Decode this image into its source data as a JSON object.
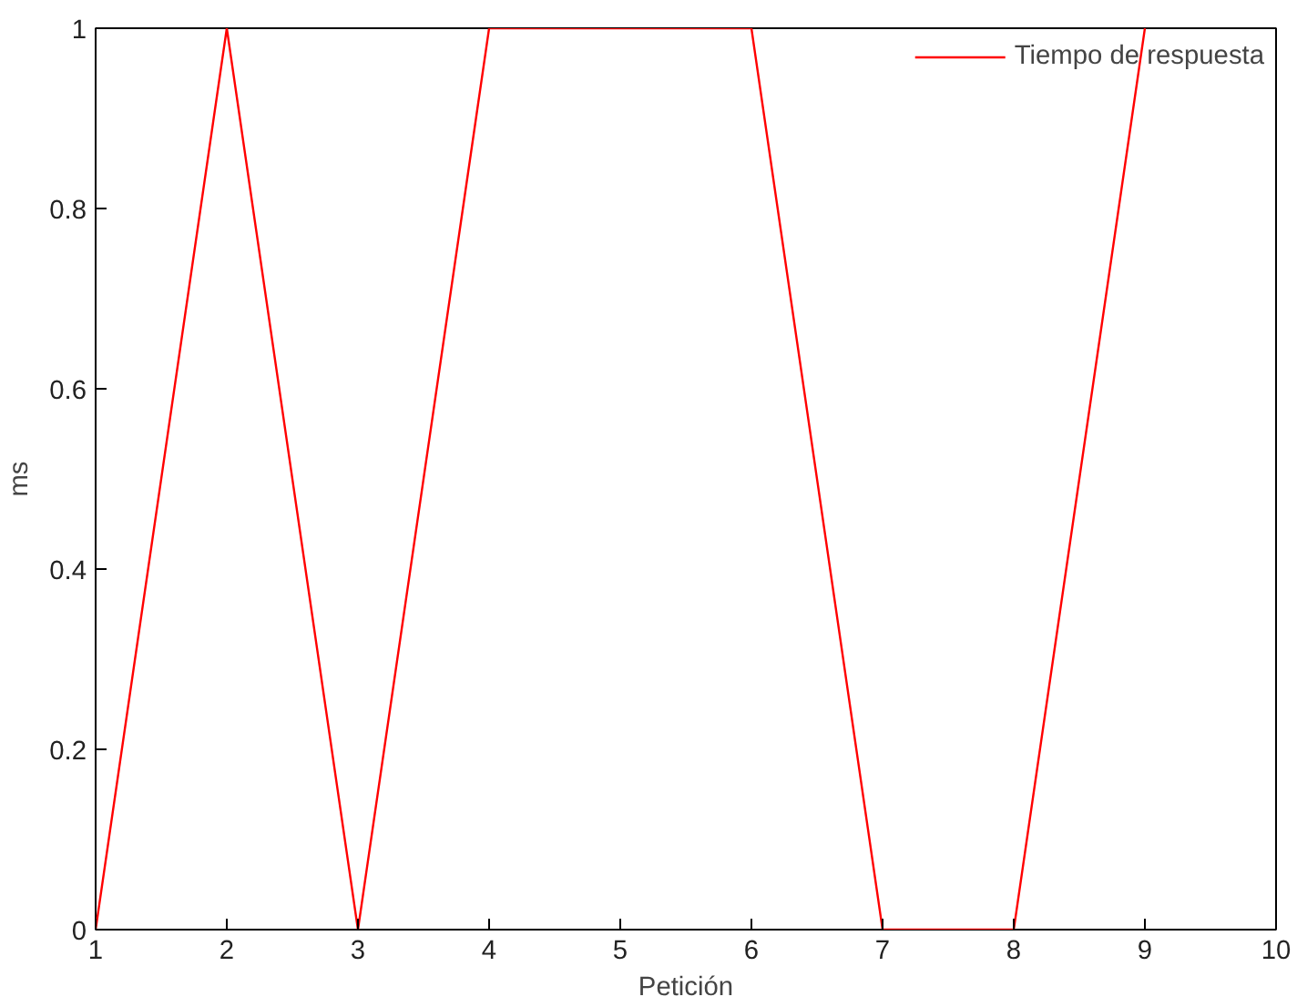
{
  "chart_data": {
    "type": "line",
    "xlabel": "Petición",
    "ylabel": "ms",
    "x": [
      1,
      2,
      3,
      4,
      5,
      6,
      7,
      8,
      9
    ],
    "series": [
      {
        "name": "Tiempo de respuesta",
        "color": "#ff0000",
        "values": [
          0,
          1,
          0,
          1,
          1,
          1,
          0,
          0,
          1
        ]
      }
    ],
    "xlim": [
      1,
      10
    ],
    "ylim": [
      0,
      1
    ],
    "xticks": [
      1,
      2,
      3,
      4,
      5,
      6,
      7,
      8,
      9,
      10
    ],
    "yticks": [
      0,
      {
        "value": 0.2,
        "label": "0.2"
      },
      {
        "value": 0.4,
        "label": "0.4"
      },
      {
        "value": 0.6,
        "label": "0.6"
      },
      {
        "value": 0.8,
        "label": "0.8"
      },
      1
    ],
    "grid": false,
    "legend": "top right",
    "marker": "none",
    "line_style": "solid"
  }
}
